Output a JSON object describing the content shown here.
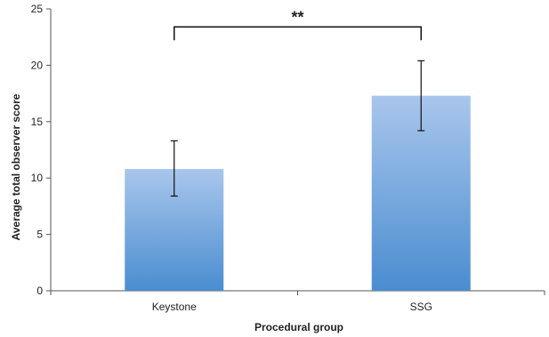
{
  "chart_data": {
    "type": "bar",
    "title": "",
    "xlabel": "Procedural group",
    "ylabel": "Average total observer score",
    "categories": [
      "Keystone",
      "SSG"
    ],
    "values": [
      10.8,
      17.3
    ],
    "error_low": [
      8.4,
      14.2
    ],
    "error_high": [
      13.3,
      20.4
    ],
    "ylim": [
      0,
      25
    ],
    "yticks": [
      0,
      5,
      10,
      15,
      20,
      25
    ],
    "grid": false,
    "bar_gradient": {
      "top": "#a9c6ec",
      "bottom": "#4a8dd0"
    },
    "significance": {
      "from": 0,
      "to": 1,
      "y": 23.4,
      "label": "**"
    }
  }
}
